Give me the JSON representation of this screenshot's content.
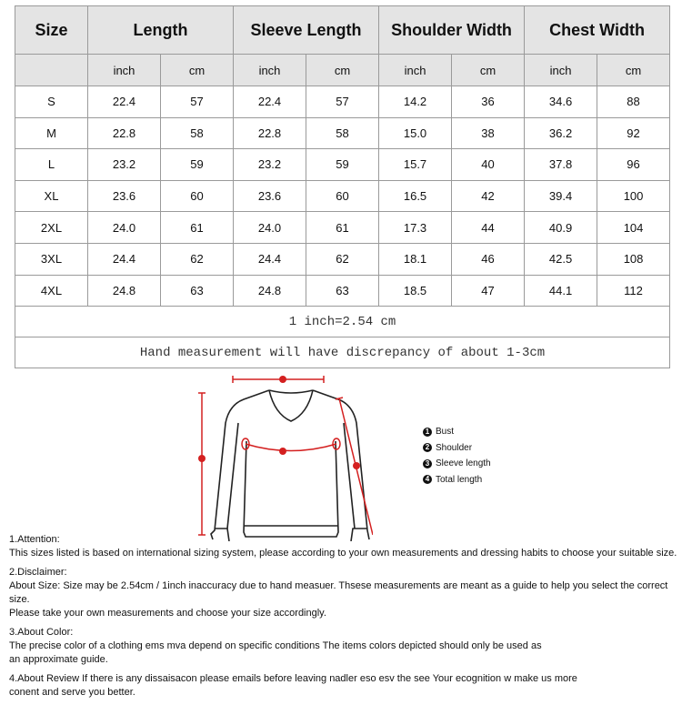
{
  "table": {
    "headers": [
      "Size",
      "Length",
      "Sleeve Length",
      "Shoulder Width",
      "Chest Width"
    ],
    "units": [
      "inch",
      "cm",
      "inch",
      "cm",
      "inch",
      "cm",
      "inch",
      "cm"
    ],
    "rows": [
      [
        "S",
        "22.4",
        "57",
        "22.4",
        "57",
        "14.2",
        "36",
        "34.6",
        "88"
      ],
      [
        "M",
        "22.8",
        "58",
        "22.8",
        "58",
        "15.0",
        "38",
        "36.2",
        "92"
      ],
      [
        "L",
        "23.2",
        "59",
        "23.2",
        "59",
        "15.7",
        "40",
        "37.8",
        "96"
      ],
      [
        "XL",
        "23.6",
        "60",
        "23.6",
        "60",
        "16.5",
        "42",
        "39.4",
        "100"
      ],
      [
        "2XL",
        "24.0",
        "61",
        "24.0",
        "61",
        "17.3",
        "44",
        "40.9",
        "104"
      ],
      [
        "3XL",
        "24.4",
        "62",
        "24.4",
        "62",
        "18.1",
        "46",
        "42.5",
        "108"
      ],
      [
        "4XL",
        "24.8",
        "63",
        "24.8",
        "63",
        "18.5",
        "47",
        "44.1",
        "112"
      ]
    ],
    "conversion": "1 inch=2.54 cm",
    "discrepancy": "Hand measurement will have discrepancy of about 1-3cm"
  },
  "diagram": {
    "accent_color": "#d42020",
    "legend": [
      {
        "n": "1",
        "label": "Bust"
      },
      {
        "n": "2",
        "label": "Shoulder"
      },
      {
        "n": "3",
        "label": "Sleeve length"
      },
      {
        "n": "4",
        "label": "Total length"
      }
    ]
  },
  "notes": [
    {
      "title": "1.Attention:",
      "lines": [
        "This sizes listed is based on international sizing system, please according to your own measurements and dressing habits to choose your suitable size."
      ]
    },
    {
      "title": "2.Disclaimer:",
      "lines": [
        "About Size: Size may be 2.54cm / 1inch inaccuracy due to hand measuer. Thsese measurements are meant as a guide to help you select the correct size.",
        "Please take your own measurements and choose your size accordingly."
      ]
    },
    {
      "title": "3.About Color:",
      "lines": [
        "The precise color of a clothing ems mva depend on specific conditions The items colors depicted should only be used as",
        "an approximate guide."
      ]
    },
    {
      "title": "",
      "lines": [
        "4.About Review If there is any dissaisacon please emails before leaving nadler eso esv the see Your ecognition w make us more",
        "conent and serve you better."
      ]
    }
  ]
}
